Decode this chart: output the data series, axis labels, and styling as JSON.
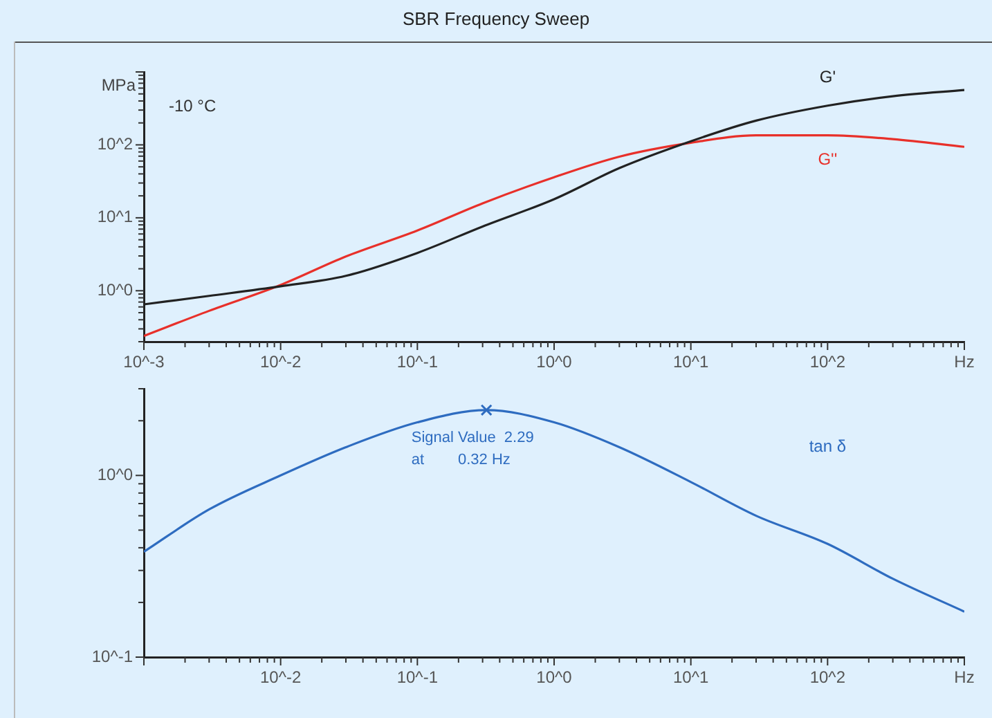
{
  "chart_data": [
    {
      "type": "line",
      "title": "SBR Frequency Sweep",
      "ylabel": "MPa",
      "log": "xy",
      "legend": false,
      "grid": false,
      "marker": "none",
      "line_style": "solid",
      "annotations": [
        "-10 °C"
      ],
      "x": [
        0.001,
        0.003,
        0.01,
        0.03,
        0.1,
        0.3,
        1,
        3,
        10,
        30,
        100,
        300,
        1000
      ],
      "xlim": [
        0.001,
        1000
      ],
      "xticks": [
        {
          "value": 0.001,
          "label": "10^-3"
        },
        {
          "value": 0.01,
          "label": "10^-2"
        },
        {
          "value": 0.1,
          "label": "10^-1"
        },
        {
          "value": 1,
          "label": "10^0"
        },
        {
          "value": 10,
          "label": "10^1"
        },
        {
          "value": 100,
          "label": "10^2"
        },
        {
          "value": 1000,
          "label": "Hz"
        }
      ],
      "ylim": [
        0.2,
        1000
      ],
      "yticks": [
        {
          "value": 1,
          "label": "10^0"
        },
        {
          "value": 10,
          "label": "10^1"
        },
        {
          "value": 100,
          "label": "10^2"
        }
      ],
      "series": [
        {
          "name": "G'",
          "color": "#222222",
          "values": [
            0.65,
            0.85,
            1.15,
            1.6,
            3.3,
            7.6,
            18,
            48,
            112,
            215,
            345,
            465,
            565
          ]
        },
        {
          "name": "G''",
          "color": "#e8302a",
          "values": [
            0.24,
            0.53,
            1.2,
            2.95,
            6.7,
            15.8,
            36,
            69,
            107,
            135,
            135,
            120,
            94
          ]
        }
      ]
    },
    {
      "type": "line",
      "log": "xy",
      "legend": false,
      "grid": false,
      "marker": "none",
      "line_style": "solid",
      "annotations": [
        {
          "text": "Signal Value  2.29",
          "x": 0.32,
          "y": 2.29
        },
        "at        0.32 Hz"
      ],
      "xlim": [
        0.001,
        1000
      ],
      "xticks": [
        {
          "value": 0.001,
          "label": null
        },
        {
          "value": 0.01,
          "label": "10^-2"
        },
        {
          "value": 0.1,
          "label": "10^-1"
        },
        {
          "value": 1,
          "label": "10^0"
        },
        {
          "value": 10,
          "label": "10^1"
        },
        {
          "value": 100,
          "label": "10^2"
        },
        {
          "value": 1000,
          "label": "Hz"
        }
      ],
      "ylim": [
        0.1,
        3
      ],
      "yticks": [
        {
          "value": 0.1,
          "label": "10^-1"
        },
        {
          "value": 1,
          "label": "10^0"
        }
      ],
      "series": [
        {
          "name": "tan δ",
          "color": "#2e6cc0",
          "x": [
            0.001,
            0.003,
            0.01,
            0.03,
            0.1,
            0.32,
            1,
            3,
            10,
            30,
            100,
            300,
            1000
          ],
          "values": [
            0.38,
            0.65,
            1.0,
            1.43,
            1.96,
            2.29,
            1.96,
            1.43,
            0.92,
            0.6,
            0.42,
            0.27,
            0.178
          ]
        },
        {
          "type": "scatter",
          "marker": "cross",
          "color": "#2e6cc0",
          "x": [
            0.32
          ],
          "values": [
            2.29
          ]
        }
      ]
    }
  ]
}
